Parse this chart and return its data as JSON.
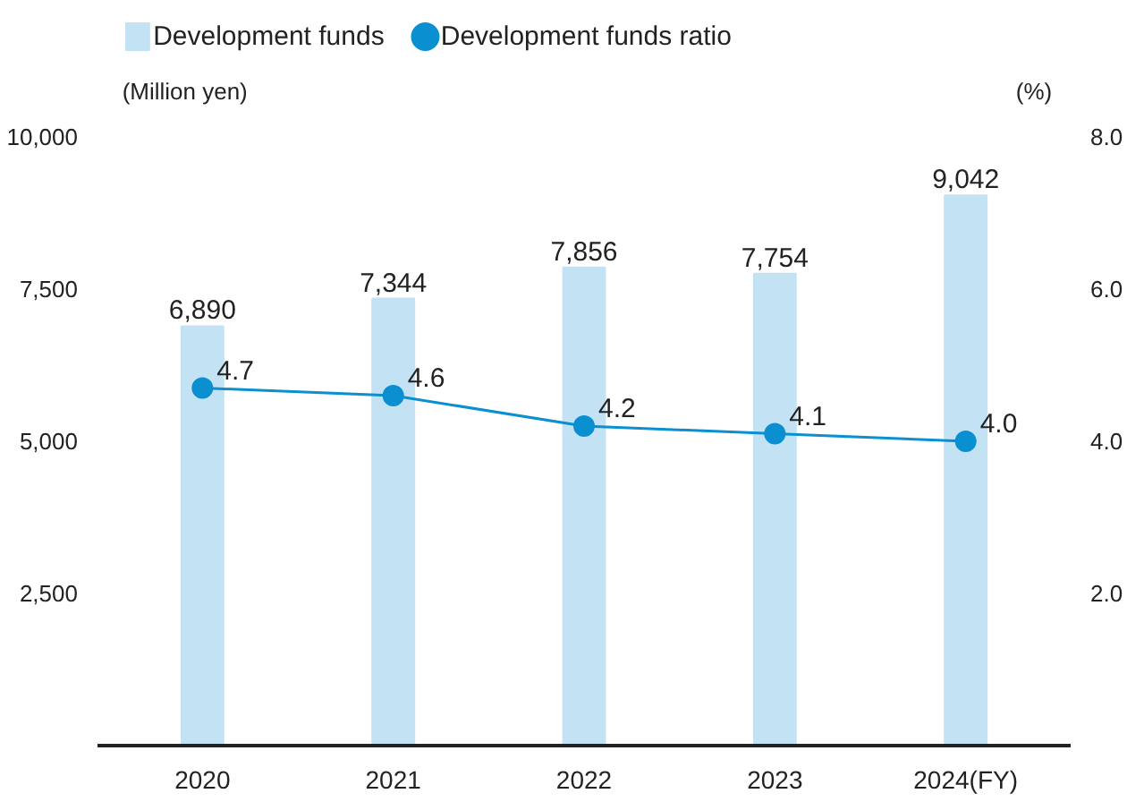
{
  "chart_data": {
    "type": "bar",
    "categories": [
      "2020",
      "2021",
      "2022",
      "2023",
      "2024(FY)"
    ],
    "ylabel": "(Million yen)",
    "y2label": "(%)",
    "series": [
      {
        "name": "Development funds",
        "color": "#c3e2f4",
        "values": [
          6890,
          7344,
          7856,
          7754,
          9042
        ],
        "value_labels": [
          "6,890",
          "7,344",
          "7,856",
          "7,754",
          "9,042"
        ]
      },
      {
        "name": "Development funds ratio",
        "type": "line",
        "axis": "y2",
        "color": "#0a8fd0",
        "marker": "circle",
        "values": [
          4.7,
          4.6,
          4.2,
          4.1,
          4.0
        ],
        "value_labels": [
          "4.7",
          "4.6",
          "4.2",
          "4.1",
          "4.0"
        ]
      }
    ],
    "ylim": [
      0,
      10000
    ],
    "yticks": [
      {
        "value": 2500,
        "label": "2,500"
      },
      {
        "value": 5000,
        "label": "5,000"
      },
      {
        "value": 7500,
        "label": "7,500"
      },
      {
        "value": 10000,
        "label": "10,000"
      }
    ],
    "y2lim": [
      0,
      8
    ],
    "y2ticks": [
      {
        "value": 2,
        "label": "2.0"
      },
      {
        "value": 4,
        "label": "4.0"
      },
      {
        "value": 6,
        "label": "6.0"
      },
      {
        "value": 8,
        "label": "8.0"
      }
    ],
    "grid": false,
    "legend": "top left"
  }
}
